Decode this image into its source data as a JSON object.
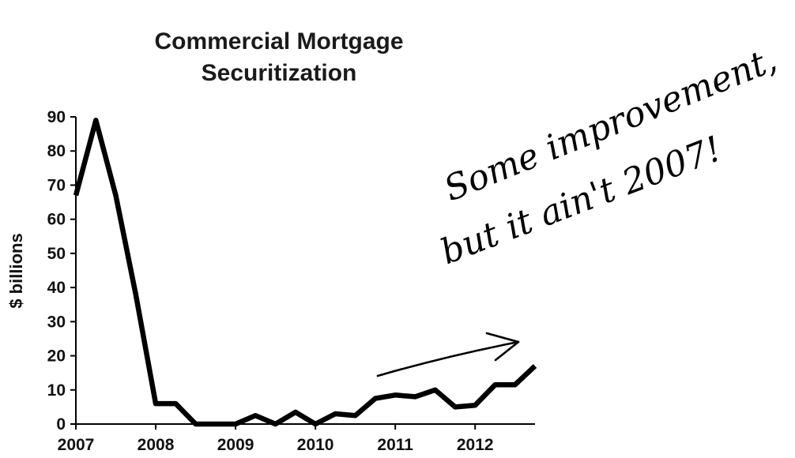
{
  "chart_data": {
    "type": "line",
    "title_lines": [
      "Commercial Mortgage",
      "Securitization"
    ],
    "xlabel": "",
    "ylabel": "$ billions",
    "x_ticks": [
      "2007",
      "2008",
      "2009",
      "2010",
      "2011",
      "2012"
    ],
    "y_ticks": [
      "0",
      "10",
      "20",
      "30",
      "40",
      "50",
      "60",
      "70",
      "80",
      "90"
    ],
    "xlim": [
      "2007 Q1",
      "2012 Q4"
    ],
    "ylim": [
      0,
      90
    ],
    "grid": false,
    "legend": "none",
    "line_color": "#000000",
    "series": [
      {
        "x": [
          "2007 Q1",
          "2007 Q2",
          "2007 Q3",
          "2007 Q4",
          "2008 Q1",
          "2008 Q2",
          "2008 Q3",
          "2008 Q4",
          "2009 Q1",
          "2009 Q2",
          "2009 Q3",
          "2009 Q4",
          "2010 Q1",
          "2010 Q2",
          "2010 Q3",
          "2010 Q4",
          "2011 Q1",
          "2011 Q2",
          "2011 Q3",
          "2011 Q4",
          "2012 Q1",
          "2012 Q2",
          "2012 Q3",
          "2012 Q4"
        ],
        "values": [
          67,
          89,
          67,
          38,
          6,
          6,
          0,
          0,
          0,
          2.5,
          0,
          3.5,
          0,
          3,
          2.5,
          7.5,
          8.5,
          8,
          10,
          5,
          5.5,
          11.5,
          11.5,
          17
        ]
      }
    ],
    "annotation": {
      "line1": "Some improvement,",
      "line2": "but it ain't 2007!"
    }
  }
}
